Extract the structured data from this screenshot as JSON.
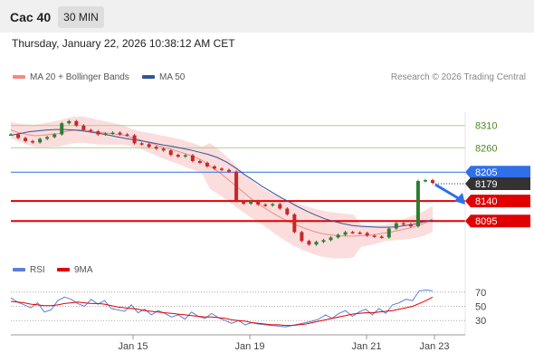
{
  "header": {
    "instrument": "Cac 40",
    "timeframe": "30 MIN"
  },
  "datetime": "Thursday, January 22, 2026 10:38:12 AM CET",
  "legend": {
    "bollinger": "MA 20 + Bollinger Bands",
    "ma50": "MA 50",
    "credit": "Research © 2026 Trading Central"
  },
  "rsi_legend": {
    "rsi": "RSI",
    "ma": "9MA"
  },
  "colors": {
    "bollinger": "#f28b82",
    "ma50": "#2f5597",
    "up": "#2e7d32",
    "down": "#c62828",
    "resistance": "#a8d08d",
    "pivot": "#2f6fe8",
    "support": "#e00000",
    "current": "#333333",
    "rsi": "#5b7fd6",
    "rsi_ma": "#e00000"
  },
  "chart_data": [
    {
      "type": "line",
      "title": "Cac 40 30 MIN",
      "x_ticks": [
        "Jan 15",
        "Jan 19",
        "Jan 21",
        "Jan 23"
      ],
      "ylim": [
        8020,
        8340
      ],
      "levels": [
        {
          "value": 8310,
          "label": "8310",
          "kind": "resistance"
        },
        {
          "value": 8260,
          "label": "8260",
          "kind": "resistance"
        },
        {
          "value": 8205,
          "label": "8205",
          "kind": "pivot"
        },
        {
          "value": 8179,
          "label": "8179",
          "kind": "current"
        },
        {
          "value": 8140,
          "label": "8140",
          "kind": "support"
        },
        {
          "value": 8095,
          "label": "8095",
          "kind": "support"
        }
      ],
      "series": [
        {
          "name": "Price",
          "values": [
            8290,
            8282,
            8275,
            8272,
            8280,
            8284,
            8290,
            8315,
            8320,
            8310,
            8300,
            8297,
            8290,
            8292,
            8294,
            8290,
            8288,
            8270,
            8268,
            8262,
            8258,
            8254,
            8244,
            8240,
            8243,
            8230,
            8226,
            8218,
            8213,
            8210,
            8206,
            8140,
            8134,
            8140,
            8132,
            8130,
            8133,
            8123,
            8110,
            8070,
            8050,
            8042,
            8048,
            8052,
            8058,
            8064,
            8070,
            8069,
            8068,
            8062,
            8060,
            8058,
            8078,
            8090,
            8088,
            8083,
            8185,
            8187,
            8181
          ]
        },
        {
          "name": "MA 20 + Bollinger Bands",
          "values": [
            8300,
            8294,
            8290,
            8287,
            8288,
            8290,
            8292,
            8297,
            8300,
            8301,
            8298,
            8295,
            8293,
            8291,
            8289,
            8284,
            8279,
            8273,
            8268,
            8262,
            8257,
            8252,
            8246,
            8240,
            8232,
            8219,
            8207,
            8193,
            8178,
            8163,
            8148,
            8135,
            8123,
            8112,
            8102,
            8093,
            8085,
            8078,
            8072,
            8067,
            8064,
            8062,
            8061,
            8061,
            8062,
            8063,
            8065,
            8068,
            8071,
            8075,
            8079,
            8084,
            8090,
            8100
          ]
        },
        {
          "name": "MA 50",
          "values": [
            8288,
            8292,
            8296,
            8298,
            8300,
            8301,
            8301,
            8300,
            8298,
            8295,
            8292,
            8288,
            8284,
            8280,
            8277,
            8274,
            8270,
            8266,
            8263,
            8259,
            8255,
            8250,
            8245,
            8238,
            8228,
            8215,
            8200,
            8187,
            8173,
            8161,
            8149,
            8138,
            8127,
            8117,
            8108,
            8100,
            8094,
            8089,
            8085,
            8083,
            8082,
            8081,
            8081,
            8082,
            8085,
            8088,
            8093,
            8097
          ]
        }
      ]
    },
    {
      "type": "line",
      "title": "RSI",
      "x_ticks": [
        "Jan 15",
        "Jan 19",
        "Jan 21",
        "Jan 23"
      ],
      "ylim": [
        20,
        80
      ],
      "y_ticks": [
        70,
        50,
        30
      ],
      "series": [
        {
          "name": "RSI",
          "values": [
            62,
            56,
            52,
            48,
            55,
            42,
            45,
            58,
            63,
            60,
            54,
            50,
            60,
            53,
            58,
            47,
            45,
            43,
            52,
            41,
            46,
            38,
            44,
            40,
            35,
            38,
            32,
            42,
            36,
            33,
            40,
            34,
            30,
            26,
            30,
            24,
            27,
            25,
            24,
            23,
            22,
            21,
            23,
            25,
            27,
            29,
            32,
            38,
            33,
            40,
            44,
            36,
            42,
            46,
            38,
            47,
            40,
            52,
            55,
            60,
            58,
            72,
            73,
            72
          ]
        },
        {
          "name": "9MA",
          "values": [
            57,
            56,
            55,
            53,
            52,
            51,
            51,
            52,
            54,
            55,
            56,
            55,
            54,
            54,
            53,
            51,
            49,
            48,
            47,
            46,
            44,
            43,
            42,
            41,
            40,
            39,
            38,
            37,
            36,
            35,
            35,
            34,
            33,
            31,
            30,
            29,
            27,
            26,
            25,
            24,
            24,
            23,
            23,
            24,
            25,
            27,
            29,
            31,
            33,
            35,
            37,
            39,
            40,
            41,
            41,
            42,
            43,
            44,
            46,
            48,
            50,
            54,
            58,
            63
          ]
        }
      ]
    }
  ]
}
